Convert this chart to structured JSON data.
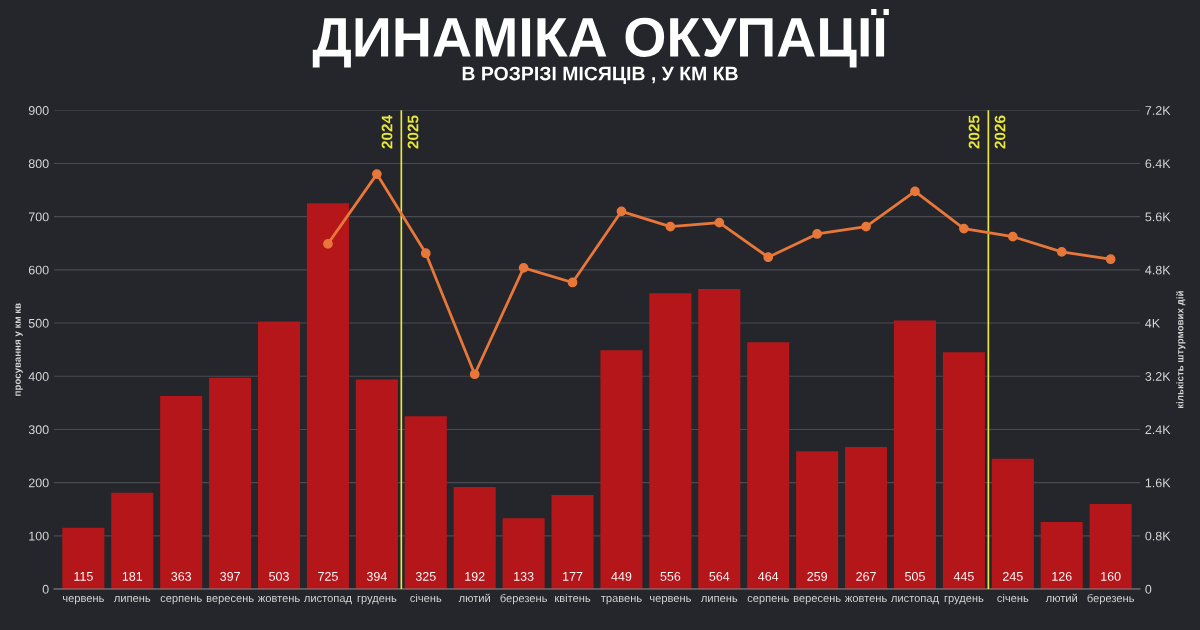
{
  "chart_data": {
    "type": "bar",
    "title": "ДИНАМІКА ОКУПАЦІЇ",
    "subtitle": "В РОЗРІЗІ МІСЯЦІВ , У КМ КВ",
    "ylabel": "просування у км кв",
    "y2label": "кількість штурмових дій",
    "categories": [
      "червень",
      "липень",
      "серпень",
      "вересень",
      "жовтень",
      "листопад",
      "грудень",
      "січень",
      "лютий",
      "березень",
      "квітень",
      "травень",
      "червень",
      "липень",
      "серпень",
      "вересень",
      "жовтень",
      "листопад",
      "грудень",
      "січень",
      "лютий",
      "березень"
    ],
    "series": [
      {
        "color": "#b5161a",
        "values": [
          115,
          181,
          363,
          397,
          503,
          725,
          394,
          325,
          192,
          133,
          177,
          449,
          556,
          564,
          464,
          259,
          267,
          505,
          445,
          245,
          126,
          160
        ],
        "value_labels": [
          "115",
          "181",
          "363",
          "397",
          "503",
          "725",
          "394",
          "325",
          "192",
          "133",
          "177",
          "449",
          "556",
          "564",
          "464",
          "259",
          "267",
          "505",
          "445",
          "245",
          "126",
          "160"
        ]
      },
      {
        "type": "line",
        "axis": "y2",
        "color": "#e8773a",
        "values": [
          null,
          null,
          null,
          null,
          null,
          5190,
          6240,
          5050,
          3230,
          4830,
          4610,
          5680,
          5450,
          5510,
          4990,
          5340,
          5450,
          5980,
          5420,
          5300,
          5070,
          4960
        ]
      }
    ],
    "ylim": [
      0,
      900
    ],
    "yticks": [
      0,
      100,
      200,
      300,
      400,
      500,
      600,
      700,
      800,
      900
    ],
    "y2lim": [
      0,
      7200
    ],
    "y2ticks": [
      0,
      {
        "value": 800,
        "label": "0.8K"
      },
      {
        "value": 1600,
        "label": "1.6K"
      },
      {
        "value": 2400,
        "label": "2.4K"
      },
      {
        "value": 3200,
        "label": "3.2K"
      },
      {
        "value": 4000,
        "label": "4K"
      },
      {
        "value": 4800,
        "label": "4.8K"
      },
      {
        "value": 5600,
        "label": "5.6K"
      },
      {
        "value": 6400,
        "label": "6.4K"
      },
      {
        "value": 7200,
        "label": "7.2K"
      }
    ],
    "grid": "y",
    "marker": "circle",
    "line_style": "solid",
    "annotations": [
      "2024",
      "2025",
      "2025",
      "2026"
    ]
  }
}
